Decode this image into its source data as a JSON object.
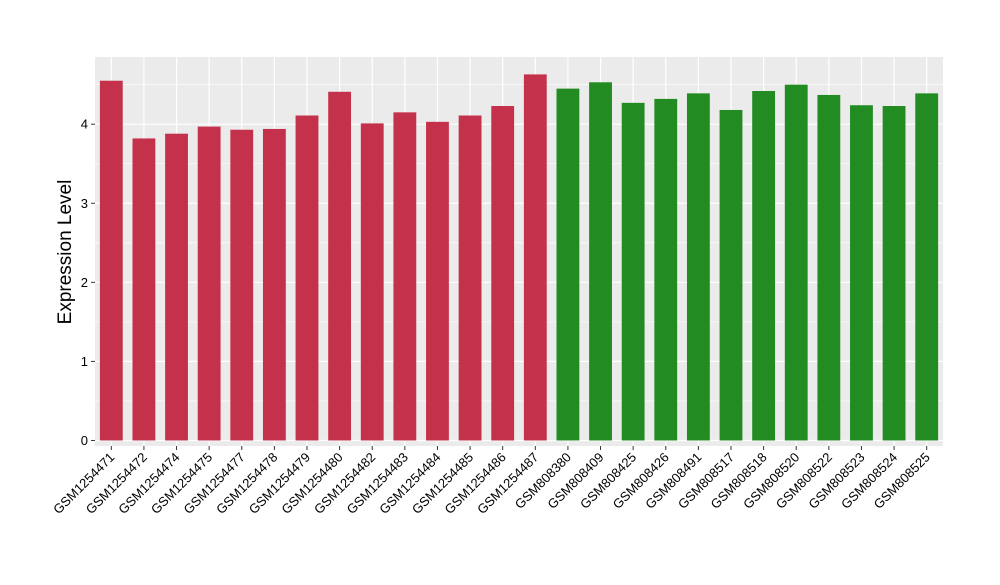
{
  "chart_data": {
    "type": "bar",
    "xlabel": "",
    "ylabel": "Expression Level",
    "ylim": [
      -0.07,
      4.85
    ],
    "yticks": [
      0,
      1,
      2,
      3,
      4
    ],
    "grid": true,
    "colors": {
      "group_a": "#C4314B",
      "group_b": "#228B22",
      "panel": "#EBEBEB",
      "gridline": "#FFFFFF",
      "axis_text": "#000000"
    },
    "categories": [
      "GSM1254471",
      "GSM1254472",
      "GSM1254474",
      "GSM1254475",
      "GSM1254477",
      "GSM1254478",
      "GSM1254479",
      "GSM1254480",
      "GSM1254482",
      "GSM1254483",
      "GSM1254484",
      "GSM1254485",
      "GSM1254486",
      "GSM1254487",
      "GSM808380",
      "GSM808409",
      "GSM808425",
      "GSM808426",
      "GSM808491",
      "GSM808517",
      "GSM808518",
      "GSM808520",
      "GSM808522",
      "GSM808523",
      "GSM808524",
      "GSM808525"
    ],
    "values": [
      4.55,
      3.82,
      3.88,
      3.97,
      3.93,
      3.94,
      4.11,
      4.41,
      4.01,
      4.15,
      4.03,
      4.11,
      4.23,
      4.63,
      4.45,
      4.53,
      4.27,
      4.32,
      4.39,
      4.18,
      4.42,
      4.5,
      4.37,
      4.24,
      4.23,
      4.39
    ],
    "groups": [
      "a",
      "a",
      "a",
      "a",
      "a",
      "a",
      "a",
      "a",
      "a",
      "a",
      "a",
      "a",
      "a",
      "a",
      "b",
      "b",
      "b",
      "b",
      "b",
      "b",
      "b",
      "b",
      "b",
      "b",
      "b",
      "b"
    ]
  }
}
